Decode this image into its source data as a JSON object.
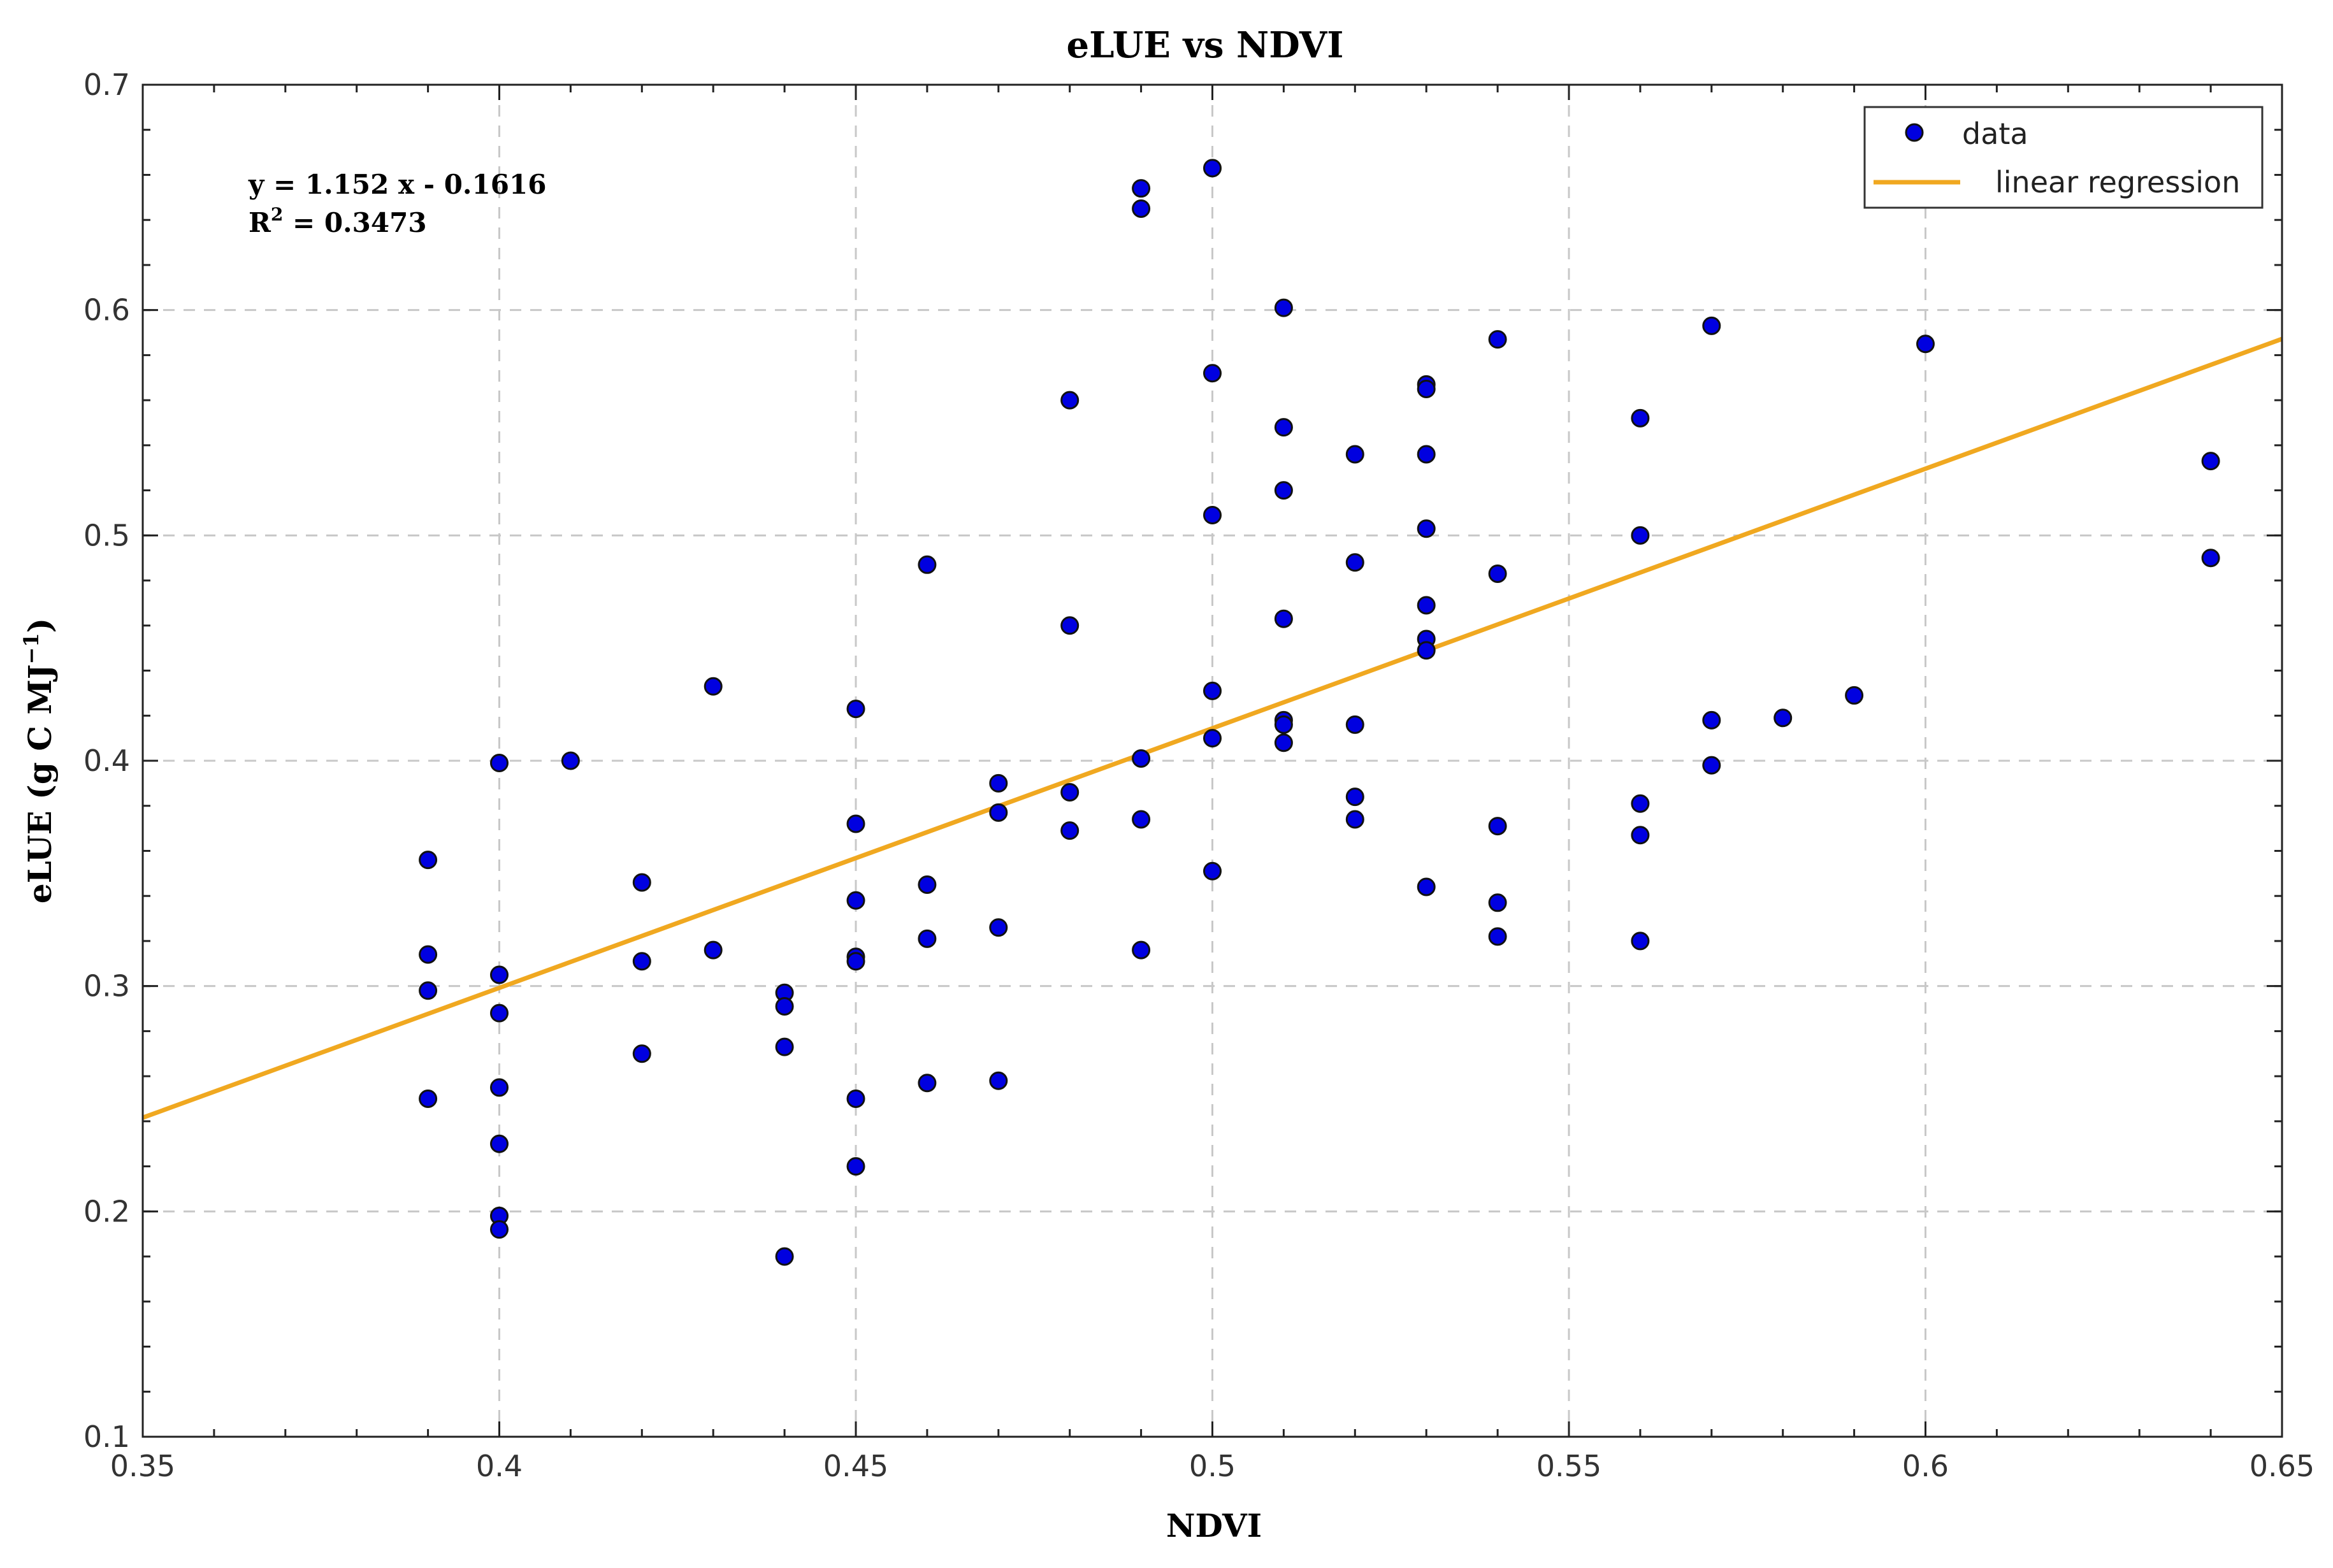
{
  "chart_data": {
    "type": "scatter",
    "title": "eLUE vs NDVI",
    "xlabel": "NDVI",
    "ylabel_main": "eLUE (g C MJ",
    "ylabel_sup": "−1",
    "ylabel_close": ")",
    "xlim": [
      0.35,
      0.65
    ],
    "ylim": [
      0.1,
      0.7
    ],
    "x_ticks": [
      0.35,
      0.4,
      0.45,
      0.5,
      0.55,
      0.6,
      0.65
    ],
    "x_tick_labels": [
      "0.35",
      "0.4",
      "0.45",
      "0.5",
      "0.55",
      "0.6",
      "0.65"
    ],
    "y_ticks": [
      0.1,
      0.2,
      0.3,
      0.4,
      0.5,
      0.6,
      0.7
    ],
    "y_tick_labels": [
      "0.1",
      "0.2",
      "0.3",
      "0.4",
      "0.5",
      "0.6",
      "0.7"
    ],
    "grid": true,
    "legend_position": "top-right",
    "legend": {
      "data_label": "data",
      "regression_label": "linear regression"
    },
    "annotation": {
      "equation": "y = 1.152 x - 0.1616",
      "r2_base": "R",
      "r2_sup": "2",
      "r2_value": " = 0.3473"
    },
    "regression": {
      "slope": 1.152,
      "intercept": -0.1616
    },
    "series": [
      {
        "name": "data",
        "points": [
          [
            0.39,
            0.356
          ],
          [
            0.39,
            0.314
          ],
          [
            0.39,
            0.298
          ],
          [
            0.39,
            0.25
          ],
          [
            0.4,
            0.399
          ],
          [
            0.4,
            0.305
          ],
          [
            0.4,
            0.288
          ],
          [
            0.4,
            0.255
          ],
          [
            0.4,
            0.23
          ],
          [
            0.4,
            0.198
          ],
          [
            0.4,
            0.192
          ],
          [
            0.41,
            0.4
          ],
          [
            0.42,
            0.346
          ],
          [
            0.42,
            0.311
          ],
          [
            0.42,
            0.27
          ],
          [
            0.43,
            0.433
          ],
          [
            0.43,
            0.316
          ],
          [
            0.44,
            0.297
          ],
          [
            0.44,
            0.291
          ],
          [
            0.44,
            0.273
          ],
          [
            0.44,
            0.18
          ],
          [
            0.45,
            0.423
          ],
          [
            0.45,
            0.372
          ],
          [
            0.45,
            0.338
          ],
          [
            0.45,
            0.313
          ],
          [
            0.45,
            0.311
          ],
          [
            0.45,
            0.25
          ],
          [
            0.45,
            0.22
          ],
          [
            0.46,
            0.487
          ],
          [
            0.46,
            0.345
          ],
          [
            0.46,
            0.321
          ],
          [
            0.46,
            0.257
          ],
          [
            0.47,
            0.39
          ],
          [
            0.47,
            0.377
          ],
          [
            0.47,
            0.326
          ],
          [
            0.47,
            0.258
          ],
          [
            0.48,
            0.56
          ],
          [
            0.48,
            0.46
          ],
          [
            0.48,
            0.386
          ],
          [
            0.48,
            0.369
          ],
          [
            0.49,
            0.654
          ],
          [
            0.49,
            0.645
          ],
          [
            0.49,
            0.401
          ],
          [
            0.49,
            0.374
          ],
          [
            0.49,
            0.316
          ],
          [
            0.5,
            0.663
          ],
          [
            0.5,
            0.572
          ],
          [
            0.5,
            0.509
          ],
          [
            0.5,
            0.431
          ],
          [
            0.5,
            0.41
          ],
          [
            0.5,
            0.351
          ],
          [
            0.51,
            0.601
          ],
          [
            0.51,
            0.548
          ],
          [
            0.51,
            0.52
          ],
          [
            0.51,
            0.463
          ],
          [
            0.51,
            0.418
          ],
          [
            0.51,
            0.416
          ],
          [
            0.51,
            0.408
          ],
          [
            0.52,
            0.536
          ],
          [
            0.52,
            0.488
          ],
          [
            0.52,
            0.416
          ],
          [
            0.52,
            0.384
          ],
          [
            0.52,
            0.374
          ],
          [
            0.53,
            0.567
          ],
          [
            0.53,
            0.565
          ],
          [
            0.53,
            0.536
          ],
          [
            0.53,
            0.503
          ],
          [
            0.53,
            0.469
          ],
          [
            0.53,
            0.454
          ],
          [
            0.53,
            0.449
          ],
          [
            0.53,
            0.344
          ],
          [
            0.54,
            0.587
          ],
          [
            0.54,
            0.483
          ],
          [
            0.54,
            0.371
          ],
          [
            0.54,
            0.337
          ],
          [
            0.54,
            0.322
          ],
          [
            0.56,
            0.552
          ],
          [
            0.56,
            0.5
          ],
          [
            0.56,
            0.381
          ],
          [
            0.56,
            0.367
          ],
          [
            0.56,
            0.32
          ],
          [
            0.57,
            0.593
          ],
          [
            0.57,
            0.418
          ],
          [
            0.57,
            0.398
          ],
          [
            0.58,
            0.419
          ],
          [
            0.59,
            0.429
          ],
          [
            0.6,
            0.585
          ],
          [
            0.64,
            0.533
          ],
          [
            0.64,
            0.49
          ]
        ]
      }
    ]
  },
  "colors": {
    "marker_fill": "#0000e0",
    "marker_edge": "#111111",
    "regression_line": "#f0a820",
    "grid": "#c8c8c8"
  }
}
